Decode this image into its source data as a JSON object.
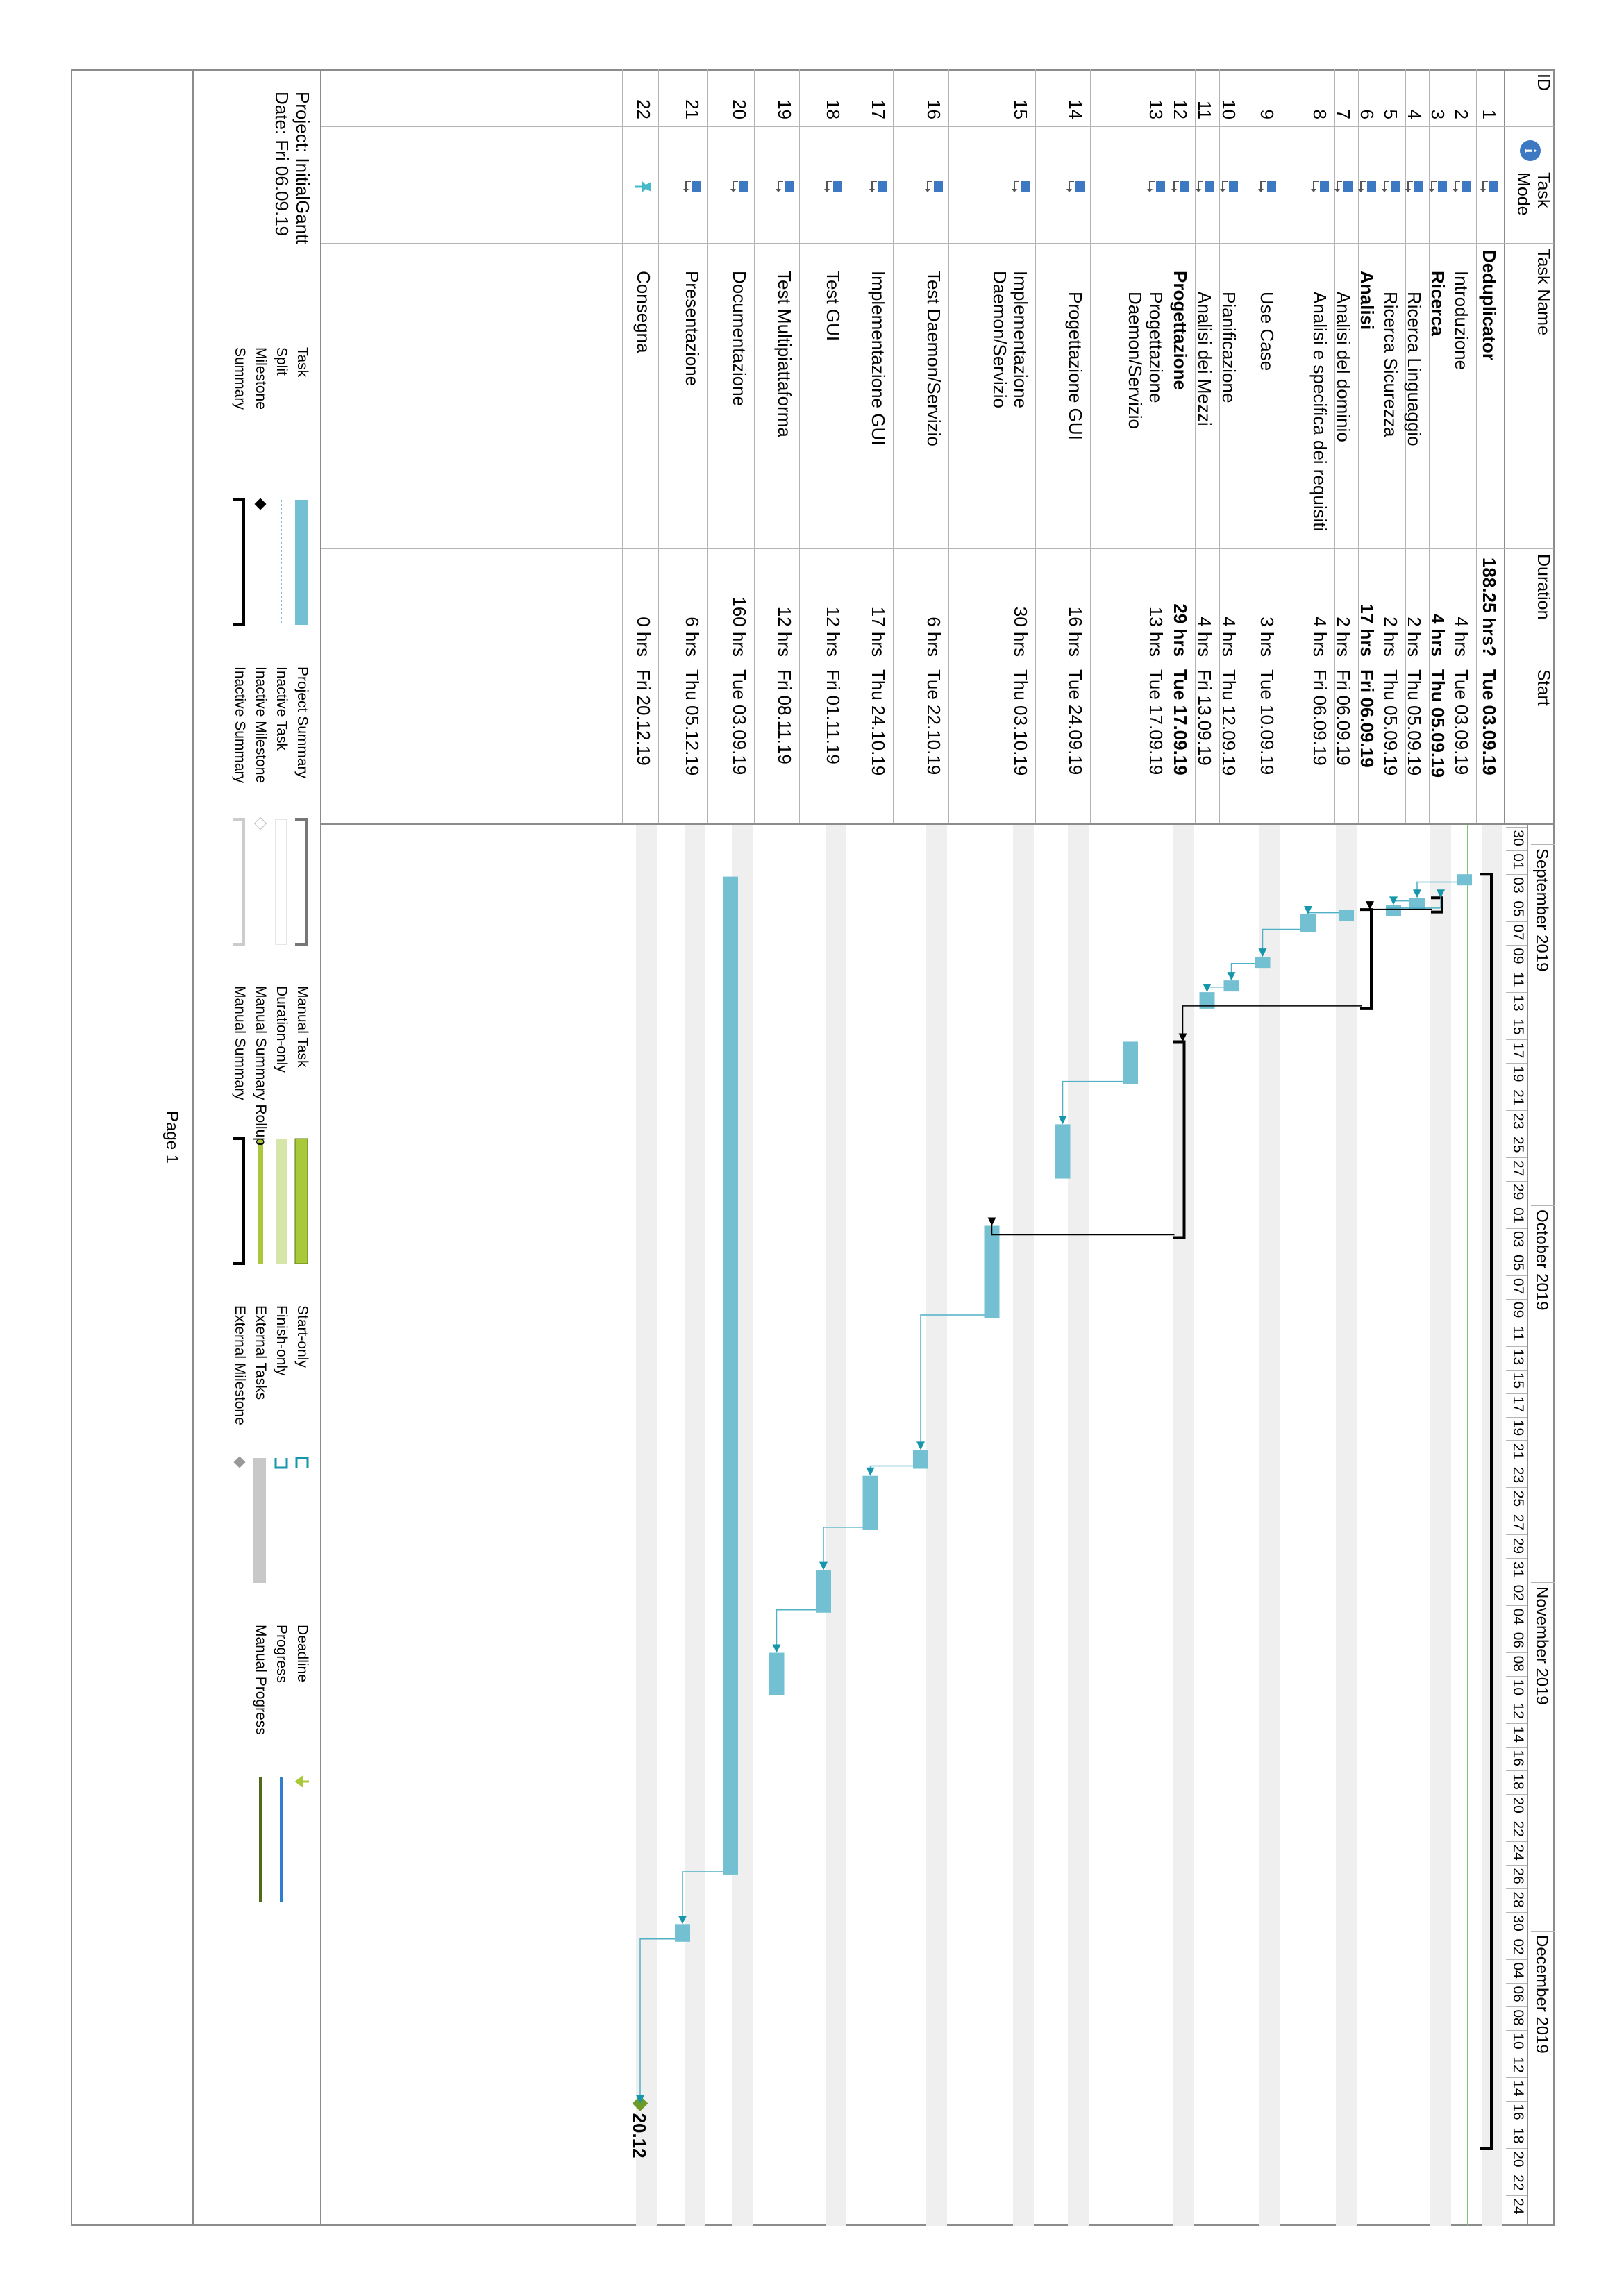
{
  "columns": {
    "id": "ID",
    "info": "i",
    "mode_line1": "Task",
    "mode_line2": "Mode",
    "name": "Task Name",
    "duration": "Duration",
    "start": "Start"
  },
  "timescale": {
    "months": [
      "September 2019",
      "October 2019",
      "November 2019",
      "December 2019"
    ],
    "days": [
      "30",
      "01",
      "03",
      "05",
      "07",
      "09",
      "11",
      "13",
      "15",
      "17",
      "19",
      "21",
      "23",
      "25",
      "27",
      "29",
      "01",
      "03",
      "05",
      "07",
      "09",
      "11",
      "13",
      "15",
      "17",
      "19",
      "21",
      "23",
      "25",
      "27",
      "29",
      "31",
      "02",
      "04",
      "06",
      "08",
      "10",
      "12",
      "14",
      "16",
      "18",
      "20",
      "22",
      "24",
      "26",
      "28",
      "30",
      "02",
      "04",
      "06",
      "08",
      "10",
      "12",
      "14",
      "16",
      "18",
      "20",
      "22",
      "24"
    ]
  },
  "tasks": [
    {
      "id": "1",
      "name": "Deduplicator",
      "duration": "188.25 hrs?",
      "start": "Tue 03.09.19",
      "summary": true,
      "indent": 0,
      "mode": "auto"
    },
    {
      "id": "2",
      "name": "Introduzione",
      "duration": "4 hrs",
      "start": "Tue 03.09.19",
      "summary": false,
      "indent": 1,
      "mode": "auto"
    },
    {
      "id": "3",
      "name": "Ricerca",
      "duration": "4 hrs",
      "start": "Thu 05.09.19",
      "summary": true,
      "indent": 1,
      "mode": "auto"
    },
    {
      "id": "4",
      "name": "Ricerca Linguaggio",
      "duration": "2 hrs",
      "start": "Thu 05.09.19",
      "summary": false,
      "indent": 2,
      "mode": "auto"
    },
    {
      "id": "5",
      "name": "Ricerca Sicurezza",
      "duration": "2 hrs",
      "start": "Thu 05.09.19",
      "summary": false,
      "indent": 2,
      "mode": "auto"
    },
    {
      "id": "6",
      "name": "Analisi",
      "duration": "17 hrs",
      "start": "Fri 06.09.19",
      "summary": true,
      "indent": 1,
      "mode": "auto"
    },
    {
      "id": "7",
      "name": "Analisi del dominio",
      "duration": "2 hrs",
      "start": "Fri 06.09.19",
      "summary": false,
      "indent": 2,
      "mode": "auto"
    },
    {
      "id": "8",
      "name": "Analisi e specifica dei requisiti",
      "duration": "4 hrs",
      "start": "Fri 06.09.19",
      "summary": false,
      "indent": 2,
      "mode": "auto"
    },
    {
      "id": "9",
      "name": "Use Case",
      "duration": "3 hrs",
      "start": "Tue 10.09.19",
      "summary": false,
      "indent": 2,
      "mode": "auto"
    },
    {
      "id": "10",
      "name": "Pianificazione",
      "duration": "4 hrs",
      "start": "Thu 12.09.19",
      "summary": false,
      "indent": 2,
      "mode": "auto"
    },
    {
      "id": "11",
      "name": "Analisi dei Mezzi",
      "duration": "4 hrs",
      "start": "Fri 13.09.19",
      "summary": false,
      "indent": 2,
      "mode": "auto"
    },
    {
      "id": "12",
      "name": "Progettazione",
      "duration": "29 hrs",
      "start": "Tue 17.09.19",
      "summary": true,
      "indent": 1,
      "mode": "auto"
    },
    {
      "id": "13",
      "name": "Progettazione Daemon/Servizio",
      "duration": "13 hrs",
      "start": "Tue 17.09.19",
      "summary": false,
      "indent": 2,
      "mode": "auto"
    },
    {
      "id": "14",
      "name": "Progettazione GUI",
      "duration": "16 hrs",
      "start": "Tue 24.09.19",
      "summary": false,
      "indent": 2,
      "mode": "auto"
    },
    {
      "id": "15",
      "name": "Implementazione Daemon/Servizio",
      "duration": "30 hrs",
      "start": "Thu 03.10.19",
      "summary": false,
      "indent": 1,
      "mode": "auto"
    },
    {
      "id": "16",
      "name": "Test Daemon/Servizio",
      "duration": "6 hrs",
      "start": "Tue 22.10.19",
      "summary": false,
      "indent": 1,
      "mode": "auto"
    },
    {
      "id": "17",
      "name": "Implementazione GUI",
      "duration": "17 hrs",
      "start": "Thu 24.10.19",
      "summary": false,
      "indent": 1,
      "mode": "auto"
    },
    {
      "id": "18",
      "name": "Test GUI",
      "duration": "12 hrs",
      "start": "Fri 01.11.19",
      "summary": false,
      "indent": 1,
      "mode": "auto"
    },
    {
      "id": "19",
      "name": "Test Multipiattaforma",
      "duration": "12 hrs",
      "start": "Fri 08.11.19",
      "summary": false,
      "indent": 1,
      "mode": "auto"
    },
    {
      "id": "20",
      "name": "Documentazione",
      "duration": "160 hrs",
      "start": "Tue 03.09.19",
      "summary": false,
      "indent": 1,
      "mode": "auto"
    },
    {
      "id": "21",
      "name": "Presentazione",
      "duration": "6 hrs",
      "start": "Thu 05.12.19",
      "summary": false,
      "indent": 1,
      "mode": "auto"
    },
    {
      "id": "22",
      "name": "Consegna",
      "duration": "0 hrs",
      "start": "Fri 20.12.19",
      "summary": false,
      "indent": 1,
      "mode": "pin"
    }
  ],
  "milestone_label": "20.12",
  "project": {
    "name_line": "Project: InitialGantt",
    "date_line": "Date: Fri 06.09.19"
  },
  "legend": {
    "col1": [
      "Task",
      "Split",
      "Milestone",
      "Summary"
    ],
    "col2": [
      "Project Summary",
      "Inactive Task",
      "Inactive Milestone",
      "Inactive Summary"
    ],
    "col3": [
      "Manual Task",
      "Duration-only",
      "Manual Summary Rollup",
      "Manual Summary"
    ],
    "col4": [
      "Start-only",
      "Finish-only",
      "External Tasks",
      "External Milestone"
    ],
    "col5": [
      "Deadline",
      "Progress",
      "Manual Progress"
    ]
  },
  "footer": {
    "page": "Page 1"
  },
  "colors": {
    "bar": "#73c0d2",
    "link": "#4fb0c6",
    "arrow": "#1596aa",
    "stripe": "#efefef",
    "statusline": "#78c878",
    "milestone": "#6e9a2a",
    "mode_icon": "#3d78c3",
    "info_icon": "#3d78c3",
    "external": "#a9c83a",
    "progress": "#2e7fd0",
    "manual_progress": "#4f6b1a"
  }
}
